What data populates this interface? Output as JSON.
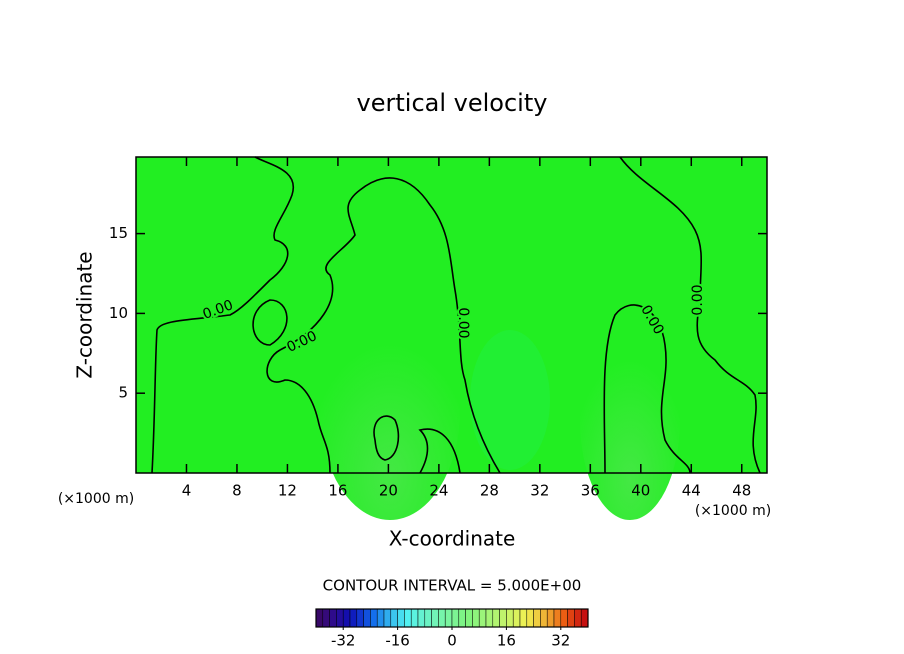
{
  "chart_data": {
    "type": "contour",
    "title": "vertical velocity",
    "xlabel": "X-coordinate",
    "ylabel": "Z-coordinate",
    "xunit": "(×1000 m)",
    "xlim": [
      0,
      50
    ],
    "xticks": [
      4,
      8,
      12,
      16,
      20,
      24,
      28,
      32,
      36,
      40,
      44,
      48
    ],
    "ylim": [
      0,
      19.8
    ],
    "yticks": [
      5,
      10,
      15
    ],
    "contour_labels": [
      "0.00",
      "0.00",
      "0.00",
      "0.00",
      "0.00"
    ],
    "contour_interval": "CONTOUR INTERVAL = 5.000E+00",
    "colorbar": {
      "lim": [
        -40,
        40
      ],
      "ticks": [
        -32,
        -16,
        0,
        16,
        32
      ]
    }
  }
}
